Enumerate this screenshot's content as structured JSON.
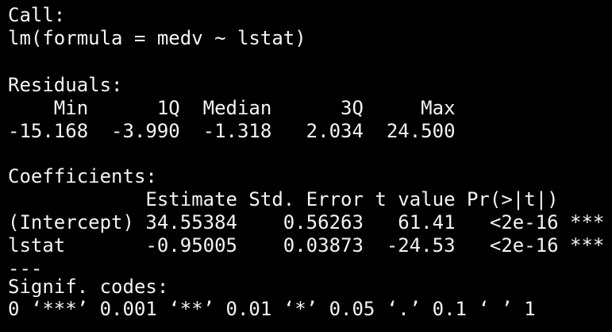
{
  "call": {
    "title": "Call:",
    "formula": "lm(formula = medv ~ lstat)"
  },
  "residuals": {
    "title": "Residuals:",
    "header": "    Min      1Q  Median      3Q     Max",
    "values": "-15.168  -3.990  -1.318   2.034  24.500"
  },
  "coefficients": {
    "title": "Coefficients:",
    "header": "            Estimate Std. Error t value Pr(>|t|)",
    "rows": [
      "(Intercept) 34.55384    0.56263   61.41   <2e-16 ***",
      "lstat       -0.95005    0.03873  -24.53   <2e-16 ***"
    ],
    "separator": "---"
  },
  "signif": {
    "title": "Signif. codes:",
    "legend": "0 ‘***’ 0.001 ‘**’ 0.01 ‘*’ 0.05 ‘.’ 0.1 ‘ ’ 1"
  }
}
